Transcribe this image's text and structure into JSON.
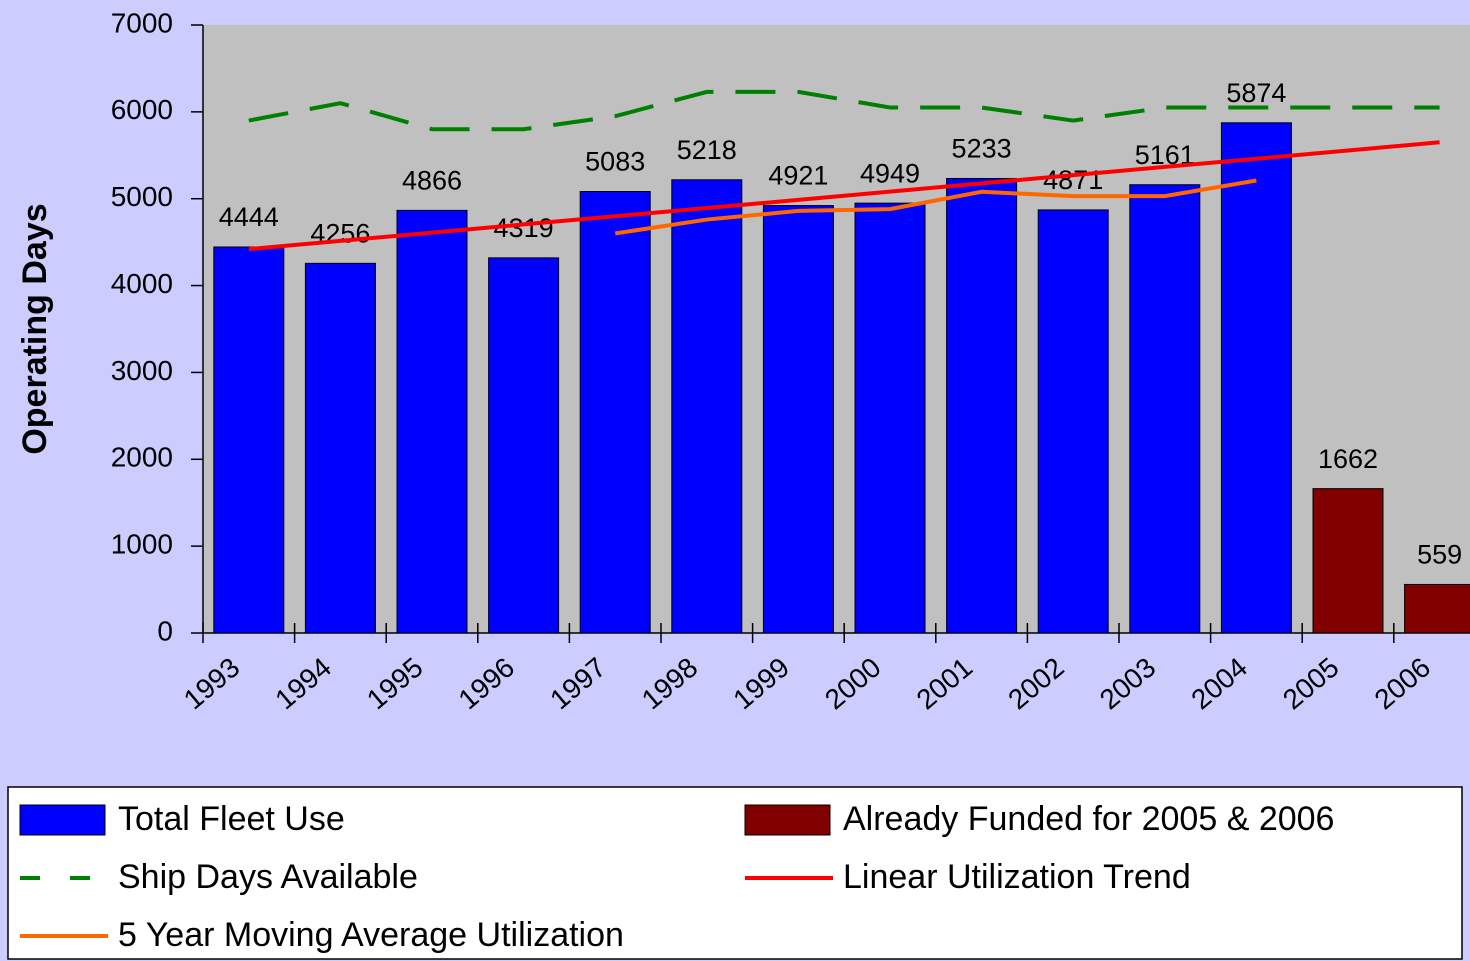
{
  "chart_data": {
    "type": "bar",
    "y_label": "Operating Days",
    "categories": [
      "1993",
      "1994",
      "1995",
      "1996",
      "1997",
      "1998",
      "1999",
      "2000",
      "2001",
      "2002",
      "2003",
      "2004",
      "2005",
      "2006"
    ],
    "ylim": [
      0,
      7000
    ],
    "yticks": [
      0,
      1000,
      2000,
      3000,
      4000,
      5000,
      6000,
      7000
    ],
    "series": [
      {
        "name": "Total Fleet Use",
        "kind": "bar",
        "color": "#0000ff",
        "values": [
          4444,
          4256,
          4866,
          4319,
          5083,
          5218,
          4921,
          4949,
          5233,
          4871,
          5161,
          5874,
          null,
          null
        ]
      },
      {
        "name": "Already Funded for 2005 & 2006",
        "kind": "bar",
        "color": "#800000",
        "values": [
          null,
          null,
          null,
          null,
          null,
          null,
          null,
          null,
          null,
          null,
          null,
          null,
          1662,
          559
        ]
      },
      {
        "name": "Ship Days Available",
        "kind": "dashed-line",
        "color": "#008000",
        "values": [
          5900,
          6100,
          5800,
          5800,
          5950,
          6230,
          6230,
          6050,
          6050,
          5900,
          6050,
          6050,
          6050,
          6050
        ]
      },
      {
        "name": "Linear Utilization Trend",
        "kind": "line",
        "color": "#ff0000",
        "values": [
          4420,
          4515,
          4609,
          4704,
          4798,
          4893,
          4987,
          5082,
          5177,
          5271,
          5366,
          5460,
          5555,
          5650
        ]
      },
      {
        "name": "5 Year Moving Average Utilization",
        "kind": "line",
        "color": "#ff6600",
        "values": [
          null,
          null,
          null,
          null,
          4600,
          4760,
          4860,
          4880,
          5080,
          5030,
          5030,
          5210,
          null,
          null
        ]
      }
    ]
  }
}
